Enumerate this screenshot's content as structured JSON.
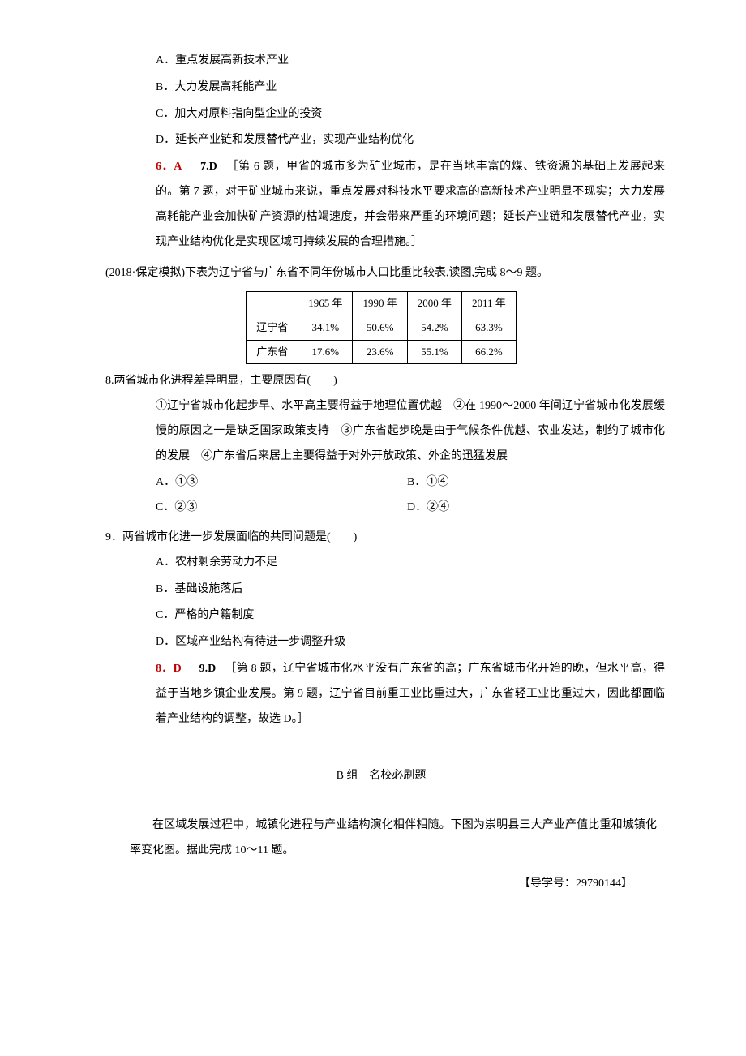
{
  "q7_options": {
    "a": "A．重点发展高新技术产业",
    "b": "B．大力发展高耗能产业",
    "c": "C．加大对原料指向型企业的投资",
    "d": "D．延长产业链和发展替代产业，实现产业结构优化"
  },
  "answer67": {
    "label1": "6．A",
    "label2": "7.D",
    "explanation": "　［第 6 题，甲省的城市多为矿业城市，是在当地丰富的煤、铁资源的基础上发展起来的。第 7 题，对于矿业城市来说，重点发展对科技水平要求高的高新技术产业明显不现实；大力发展高耗能产业会加快矿产资源的枯竭速度，并会带来严重的环境问题；延长产业链和发展替代产业，实现产业结构优化是实现区域可持续发展的合理措施。］"
  },
  "context89": "(2018·保定模拟)下表为辽宁省与广东省不同年份城市人口比重比较表,读图,完成 8～9 题。",
  "table": {
    "headers": [
      "",
      "1965 年",
      "1990 年",
      "2000 年",
      "2011 年"
    ],
    "rows": [
      {
        "label": "辽宁省",
        "cells": [
          "34.1%",
          "50.6%",
          "54.2%",
          "63.3%"
        ]
      },
      {
        "label": "广东省",
        "cells": [
          "17.6%",
          "23.6%",
          "55.1%",
          "66.2%"
        ]
      }
    ]
  },
  "q8": {
    "stem": "8.两省城市化进程差异明显，主要原因有(　　)",
    "statements": "①辽宁省城市化起步早、水平高主要得益于地理位置优越　②在 1990～2000 年间辽宁省城市化发展缓慢的原因之一是缺乏国家政策支持　③广东省起步晚是由于气候条件优越、农业发达，制约了城市化的发展　④广东省后来居上主要得益于对外开放政策、外企的迅猛发展",
    "options": {
      "a": "A．①③",
      "b": "B．①④",
      "c": "C．②③",
      "d": "D．②④"
    }
  },
  "q9": {
    "stem": "9．两省城市化进一步发展面临的共同问题是(　　)",
    "options": {
      "a": "A．农村剩余劳动力不足",
      "b": "B．基础设施落后",
      "c": "C．严格的户籍制度",
      "d": "D．区域产业结构有待进一步调整升级"
    }
  },
  "answer89": {
    "label1": "8．D",
    "label2": "9.D",
    "explanation": "　［第 8 题，辽宁省城市化水平没有广东省的高；广东省城市化开始的晚，但水平高，得益于当地乡镇企业发展。第 9 题，辽宁省目前重工业比重过大，广东省轻工业比重过大，因此都面临着产业结构的调整，故选 D。］"
  },
  "sectionB": {
    "title": "B 组　名校必刷题",
    "passage": "在区域发展过程中，城镇化进程与产业结构演化相伴相随。下图为崇明县三大产业产值比重和城镇化率变化图。据此完成 10～11 题。",
    "guide": "【导学号：29790144】"
  },
  "colors": {
    "answer_red": "#c00000",
    "text_black": "#000000",
    "background": "#ffffff",
    "border": "#000000"
  }
}
